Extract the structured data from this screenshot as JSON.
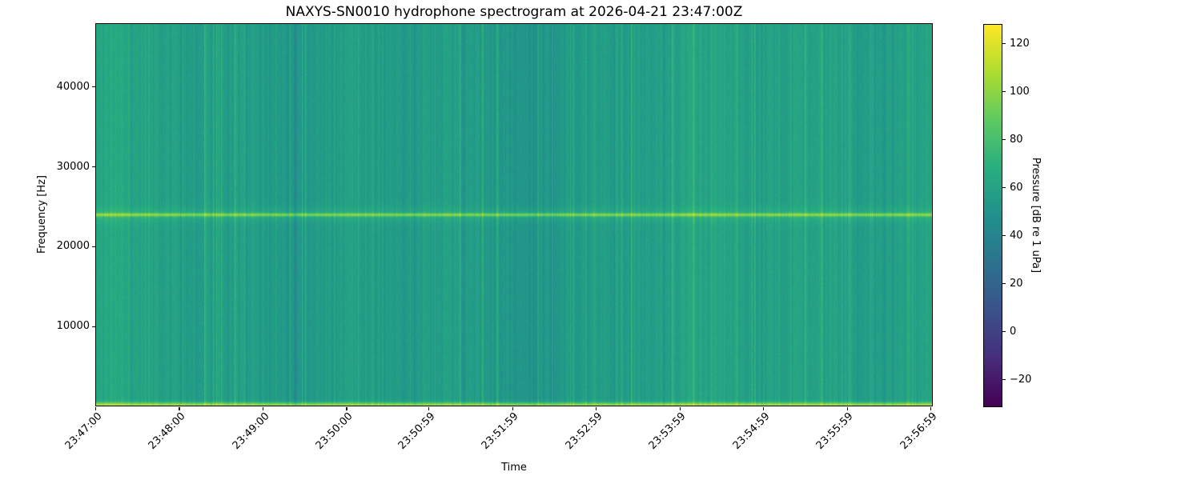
{
  "chart_data": {
    "type": "heatmap",
    "title": "NAXYS-SN0010 hydrophone spectrogram at 2026-04-21 23:47:00Z",
    "xlabel": "Time",
    "ylabel": "Frequency [Hz]",
    "colorbar_label": "Pressure [dB re 1 uPa]",
    "colormap": "viridis",
    "xtick_labels": [
      "23:47:00",
      "23:48:00",
      "23:49:00",
      "23:50:00",
      "23:50:59",
      "23:51:59",
      "23:52:59",
      "23:53:59",
      "23:54:59",
      "23:55:59",
      "23:56:59"
    ],
    "xtick_offsets_s": [
      0,
      60,
      120,
      180,
      239,
      299,
      359,
      419,
      479,
      539,
      599
    ],
    "time_span_s": 600,
    "ytick_values": [
      10000,
      20000,
      30000,
      40000
    ],
    "ytick_labels": [
      "10000",
      "20000",
      "30000",
      "40000"
    ],
    "freq_range_hz": [
      0,
      48000
    ],
    "colorbar_tick_values": [
      120,
      100,
      80,
      60,
      40,
      20,
      0,
      -20
    ],
    "colorbar_tick_labels": [
      "120",
      "100",
      "80",
      "60",
      "40",
      "20",
      "0",
      "−20"
    ],
    "value_range_db": [
      -31,
      128
    ],
    "texture": {
      "background_db": 58,
      "stripe_db": 9,
      "tonal_band_hz": 24000,
      "tonal_peak_db": 92,
      "tonal_halo_db": 67,
      "tonal_core_width_hz": 140,
      "tonal_halo_width_hz": 650,
      "lowfreq_peak_db": 105,
      "lowfreq_width_hz": 350,
      "pixel_noise_db": 3,
      "seed": 42
    }
  }
}
